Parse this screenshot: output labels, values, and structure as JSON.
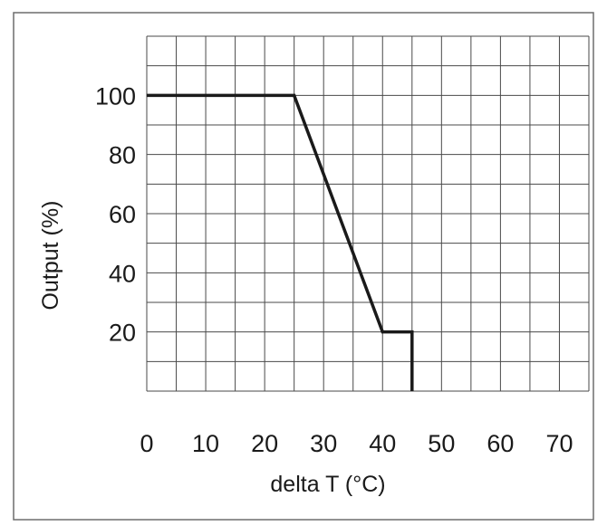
{
  "chart_data": {
    "type": "line",
    "title": "",
    "xlabel": "delta T (°C)",
    "ylabel": "Output (%)",
    "xlim": [
      0,
      75
    ],
    "ylim": [
      0,
      120
    ],
    "x_ticks": [
      0,
      10,
      20,
      30,
      40,
      50,
      60,
      70
    ],
    "y_ticks": [
      20,
      40,
      60,
      80,
      100
    ],
    "grid": true,
    "grid_step_x": 5,
    "grid_step_y": 10,
    "legend": "none",
    "series": [
      {
        "x": [
          0,
          25,
          40,
          45,
          45
        ],
        "y": [
          100,
          100,
          20,
          20,
          0
        ],
        "color": "#1a1a1a"
      }
    ]
  }
}
